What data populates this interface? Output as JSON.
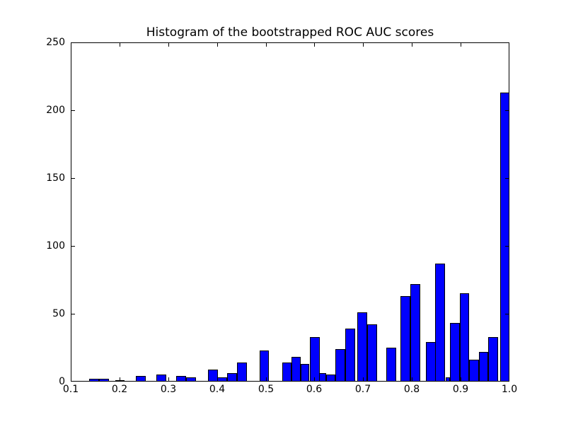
{
  "figure": {
    "background": "#ffffff",
    "text_color": "#000000"
  },
  "chart_data": {
    "type": "bar",
    "subtype": "histogram",
    "title": "Histogram of the bootstrapped ROC AUC scores",
    "xlabel": "",
    "ylabel": "",
    "xlim": [
      0.1,
      1.0
    ],
    "ylim": [
      0,
      250
    ],
    "grid": "off",
    "legend": "none",
    "bar_color": "#0000ff",
    "bar_edge_color": "#000000",
    "x_ticks": [
      {
        "v": 0.1,
        "label": "0.1"
      },
      {
        "v": 0.2,
        "label": "0.2"
      },
      {
        "v": 0.3,
        "label": "0.3"
      },
      {
        "v": 0.4,
        "label": "0.4"
      },
      {
        "v": 0.5,
        "label": "0.5"
      },
      {
        "v": 0.6,
        "label": "0.6"
      },
      {
        "v": 0.7,
        "label": "0.7"
      },
      {
        "v": 0.8,
        "label": "0.8"
      },
      {
        "v": 0.9,
        "label": "0.9"
      },
      {
        "v": 1.0,
        "label": "1.0"
      }
    ],
    "y_ticks": [
      {
        "v": 0,
        "label": "0"
      },
      {
        "v": 50,
        "label": "50"
      },
      {
        "v": 100,
        "label": "100"
      },
      {
        "v": 150,
        "label": "150"
      },
      {
        "v": 200,
        "label": "200"
      },
      {
        "v": 250,
        "label": "250"
      }
    ],
    "bins": [
      {
        "x0": 0.138,
        "x1": 0.158,
        "count": 2
      },
      {
        "x0": 0.158,
        "x1": 0.178,
        "count": 2
      },
      {
        "x0": 0.192,
        "x1": 0.211,
        "count": 1
      },
      {
        "x0": 0.233,
        "x1": 0.253,
        "count": 4
      },
      {
        "x0": 0.275,
        "x1": 0.295,
        "count": 5
      },
      {
        "x0": 0.317,
        "x1": 0.337,
        "count": 4
      },
      {
        "x0": 0.337,
        "x1": 0.357,
        "count": 3
      },
      {
        "x0": 0.381,
        "x1": 0.401,
        "count": 9
      },
      {
        "x0": 0.401,
        "x1": 0.421,
        "count": 3
      },
      {
        "x0": 0.421,
        "x1": 0.441,
        "count": 6
      },
      {
        "x0": 0.441,
        "x1": 0.461,
        "count": 14
      },
      {
        "x0": 0.488,
        "x1": 0.507,
        "count": 23
      },
      {
        "x0": 0.534,
        "x1": 0.553,
        "count": 14
      },
      {
        "x0": 0.553,
        "x1": 0.572,
        "count": 18
      },
      {
        "x0": 0.572,
        "x1": 0.59,
        "count": 13
      },
      {
        "x0": 0.59,
        "x1": 0.61,
        "count": 33
      },
      {
        "x0": 0.61,
        "x1": 0.624,
        "count": 6
      },
      {
        "x0": 0.624,
        "x1": 0.643,
        "count": 5
      },
      {
        "x0": 0.643,
        "x1": 0.663,
        "count": 24
      },
      {
        "x0": 0.663,
        "x1": 0.683,
        "count": 39
      },
      {
        "x0": 0.688,
        "x1": 0.708,
        "count": 51
      },
      {
        "x0": 0.708,
        "x1": 0.728,
        "count": 42
      },
      {
        "x0": 0.748,
        "x1": 0.768,
        "count": 25
      },
      {
        "x0": 0.777,
        "x1": 0.797,
        "count": 63
      },
      {
        "x0": 0.797,
        "x1": 0.817,
        "count": 72
      },
      {
        "x0": 0.828,
        "x1": 0.848,
        "count": 29
      },
      {
        "x0": 0.848,
        "x1": 0.869,
        "count": 87
      },
      {
        "x0": 0.869,
        "x1": 0.878,
        "count": 3
      },
      {
        "x0": 0.878,
        "x1": 0.898,
        "count": 43
      },
      {
        "x0": 0.898,
        "x1": 0.917,
        "count": 65
      },
      {
        "x0": 0.917,
        "x1": 0.937,
        "count": 16
      },
      {
        "x0": 0.937,
        "x1": 0.956,
        "count": 22
      },
      {
        "x0": 0.956,
        "x1": 0.976,
        "count": 33
      },
      {
        "x0": 0.981,
        "x1": 1.0,
        "count": 213
      }
    ]
  }
}
